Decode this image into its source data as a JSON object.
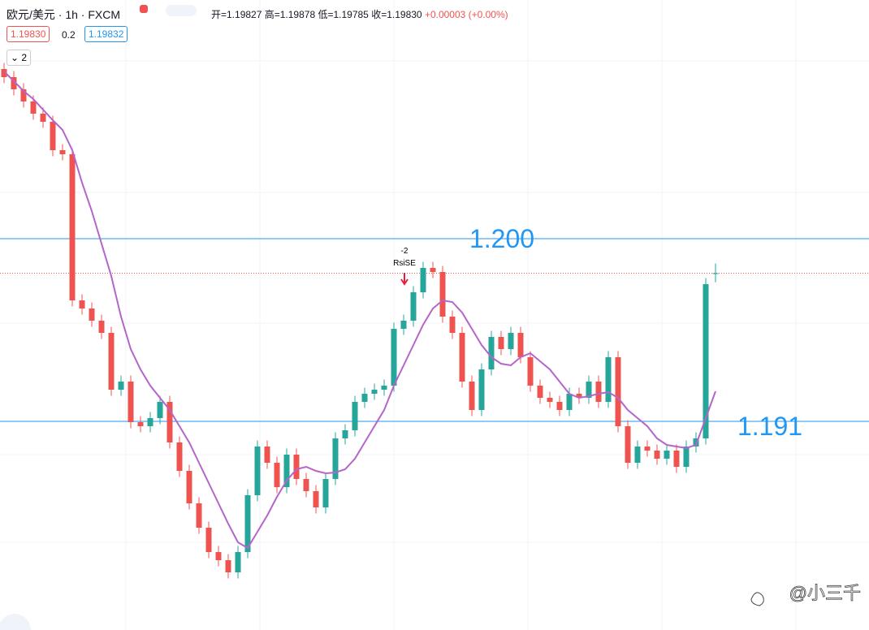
{
  "header": {
    "symbol": "欧元/美元 · 1h · FXCM",
    "open": "开=1.19827",
    "high": "高=1.19878",
    "low": "低=1.19785",
    "close": "收=1.19830",
    "change": "+0.00003 (+0.00%)",
    "bid": "1.19830",
    "spread": "0.2",
    "ask": "1.19832",
    "collapse": "2"
  },
  "watermark": "@小三千",
  "chart_data": {
    "type": "candlestick",
    "ylim": [
      1.18072,
      1.21176
    ],
    "up_color": "#26a69a",
    "down_color": "#ef5350",
    "candles": [
      [
        1.20836,
        1.20866,
        1.20766,
        1.20796
      ],
      [
        1.20796,
        1.20826,
        1.20706,
        1.20736
      ],
      [
        1.20736,
        1.20766,
        1.20646,
        1.20676
      ],
      [
        1.20676,
        1.20706,
        1.20586,
        1.20616
      ],
      [
        1.20616,
        1.20646,
        1.20546,
        1.20576
      ],
      [
        1.20576,
        1.20606,
        1.20406,
        1.20436
      ],
      [
        1.20436,
        1.20466,
        1.20386,
        1.20416
      ],
      [
        1.20416,
        1.20446,
        1.19666,
        1.19696
      ],
      [
        1.19696,
        1.19726,
        1.19626,
        1.19656
      ],
      [
        1.19656,
        1.19686,
        1.19566,
        1.19596
      ],
      [
        1.19596,
        1.19626,
        1.19506,
        1.19536
      ],
      [
        1.19536,
        1.19566,
        1.19226,
        1.19256
      ],
      [
        1.19256,
        1.19326,
        1.19226,
        1.19296
      ],
      [
        1.19296,
        1.19326,
        1.19066,
        1.19096
      ],
      [
        1.19096,
        1.19126,
        1.19046,
        1.19076
      ],
      [
        1.19076,
        1.19146,
        1.19046,
        1.19116
      ],
      [
        1.19116,
        1.19226,
        1.19086,
        1.19196
      ],
      [
        1.19196,
        1.19226,
        1.18966,
        1.18996
      ],
      [
        1.18996,
        1.19026,
        1.18826,
        1.18856
      ],
      [
        1.18856,
        1.18886,
        1.18666,
        1.18696
      ],
      [
        1.18696,
        1.18726,
        1.18546,
        1.18576
      ],
      [
        1.18576,
        1.18606,
        1.18426,
        1.18456
      ],
      [
        1.18456,
        1.18486,
        1.18386,
        1.18416
      ],
      [
        1.18416,
        1.18446,
        1.18326,
        1.18356
      ],
      [
        1.18356,
        1.18486,
        1.18326,
        1.18456
      ],
      [
        1.18456,
        1.18766,
        1.18426,
        1.18736
      ],
      [
        1.18736,
        1.19006,
        1.18706,
        1.18976
      ],
      [
        1.18976,
        1.19006,
        1.18866,
        1.18896
      ],
      [
        1.18896,
        1.18926,
        1.18746,
        1.18776
      ],
      [
        1.18776,
        1.18966,
        1.18746,
        1.18936
      ],
      [
        1.18936,
        1.18966,
        1.18786,
        1.18816
      ],
      [
        1.18816,
        1.18846,
        1.18726,
        1.18756
      ],
      [
        1.18756,
        1.18786,
        1.18646,
        1.18676
      ],
      [
        1.18676,
        1.18846,
        1.18646,
        1.18816
      ],
      [
        1.18816,
        1.19046,
        1.18786,
        1.19016
      ],
      [
        1.19016,
        1.19086,
        1.18986,
        1.19056
      ],
      [
        1.19056,
        1.19226,
        1.19026,
        1.19196
      ],
      [
        1.19196,
        1.19266,
        1.19166,
        1.19236
      ],
      [
        1.19236,
        1.19286,
        1.19206,
        1.19256
      ],
      [
        1.19256,
        1.19306,
        1.19226,
        1.19276
      ],
      [
        1.19276,
        1.19586,
        1.19246,
        1.19556
      ],
      [
        1.19556,
        1.19626,
        1.19526,
        1.19596
      ],
      [
        1.19596,
        1.19766,
        1.19566,
        1.19736
      ],
      [
        1.19736,
        1.19886,
        1.19706,
        1.19856
      ],
      [
        1.19856,
        1.19886,
        1.19806,
        1.19836
      ],
      [
        1.19836,
        1.19866,
        1.19586,
        1.19616
      ],
      [
        1.19616,
        1.19646,
        1.19506,
        1.19536
      ],
      [
        1.19536,
        1.19566,
        1.19266,
        1.19296
      ],
      [
        1.19296,
        1.19326,
        1.19126,
        1.19156
      ],
      [
        1.19156,
        1.19386,
        1.19126,
        1.19356
      ],
      [
        1.19356,
        1.19546,
        1.19326,
        1.19516
      ],
      [
        1.19516,
        1.19546,
        1.19426,
        1.19456
      ],
      [
        1.19456,
        1.19566,
        1.19426,
        1.19536
      ],
      [
        1.19536,
        1.19566,
        1.19386,
        1.19416
      ],
      [
        1.19416,
        1.19446,
        1.19246,
        1.19276
      ],
      [
        1.19276,
        1.19306,
        1.19186,
        1.19216
      ],
      [
        1.19216,
        1.19246,
        1.19166,
        1.19196
      ],
      [
        1.19196,
        1.19226,
        1.19126,
        1.19156
      ],
      [
        1.19156,
        1.19266,
        1.19126,
        1.19236
      ],
      [
        1.19236,
        1.19266,
        1.19186,
        1.19216
      ],
      [
        1.19216,
        1.19326,
        1.19186,
        1.19296
      ],
      [
        1.19296,
        1.19326,
        1.19166,
        1.19196
      ],
      [
        1.19196,
        1.19446,
        1.19166,
        1.19416
      ],
      [
        1.19416,
        1.19446,
        1.19046,
        1.19076
      ],
      [
        1.19076,
        1.19106,
        1.18866,
        1.18896
      ],
      [
        1.18896,
        1.19006,
        1.18866,
        1.18976
      ],
      [
        1.18976,
        1.19006,
        1.18926,
        1.18956
      ],
      [
        1.18956,
        1.18986,
        1.18886,
        1.18916
      ],
      [
        1.18916,
        1.18986,
        1.18886,
        1.18956
      ],
      [
        1.18956,
        1.18986,
        1.18846,
        1.18876
      ],
      [
        1.18876,
        1.19006,
        1.18846,
        1.18976
      ],
      [
        1.18976,
        1.19046,
        1.18946,
        1.19016
      ],
      [
        1.19016,
        1.19806,
        1.18986,
        1.19776
      ],
      [
        1.19827,
        1.19878,
        1.19785,
        1.1983
      ]
    ],
    "series": [
      {
        "color": "#b565c9",
        "values": [
          1.20824,
          1.20776,
          1.20728,
          1.20688,
          1.20636,
          1.20584,
          1.20536,
          1.20436,
          1.20276,
          1.20136,
          1.19976,
          1.19816,
          1.19616,
          1.19456,
          1.19356,
          1.19276,
          1.19216,
          1.19156,
          1.19076,
          1.18996,
          1.18896,
          1.18796,
          1.18696,
          1.18596,
          1.18504,
          1.18476,
          1.18556,
          1.18636,
          1.18728,
          1.18808,
          1.18864,
          1.18876,
          1.18856,
          1.18844,
          1.18848,
          1.18864,
          1.18916,
          1.18996,
          1.19076,
          1.19156,
          1.19276,
          1.19376,
          1.19476,
          1.19576,
          1.19656,
          1.19696,
          1.19688,
          1.19636,
          1.19556,
          1.19476,
          1.19416,
          1.19384,
          1.19376,
          1.19416,
          1.19436,
          1.19396,
          1.19356,
          1.19296,
          1.19236,
          1.19216,
          1.19224,
          1.19236,
          1.19244,
          1.19216,
          1.19156,
          1.19116,
          1.19076,
          1.19016,
          1.18984,
          1.18976,
          1.18968,
          1.18984,
          1.19116,
          1.19248
        ]
      }
    ],
    "levels": [
      {
        "value": 1.2,
        "label": "1.200"
      },
      {
        "value": 1.191,
        "label": "1.191"
      }
    ],
    "level_color": "#2196f3",
    "annotations": {
      "signal_value": "-2",
      "signal_name": "RsiSE"
    }
  }
}
